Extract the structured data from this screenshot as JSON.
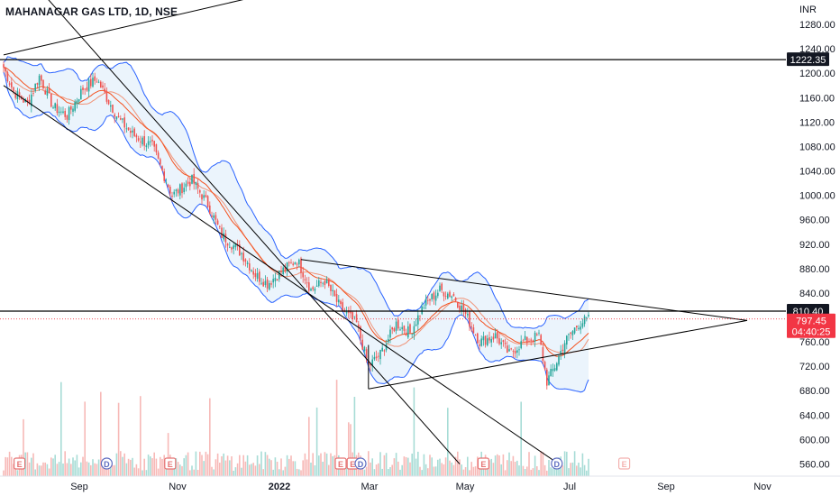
{
  "title": "MAHANAGAR GAS LTD, 1D, NSE",
  "currency": "INR",
  "colors": {
    "up": "#26a69a",
    "down": "#ef5350",
    "bb_line": "#2962ff",
    "bb_fill": "#e3f0fb",
    "ema": "#f4511e",
    "trend": "#000000",
    "vol_up": "#a7dcd6",
    "vol_down": "#f7b9b7",
    "last_price_bg": "#f23645"
  },
  "chart_data": {
    "type": "candlestick",
    "y_axis": {
      "min": 540,
      "max": 1320,
      "ticks": [
        560,
        600,
        640,
        680,
        720,
        760,
        800,
        840,
        880,
        920,
        960,
        1000,
        1040,
        1080,
        1120,
        1160,
        1200,
        1240,
        1280
      ]
    },
    "x_axis": {
      "ticks": [
        "Sep",
        "Nov",
        "2022",
        "Mar",
        "May",
        "Jul",
        "Sep",
        "Nov"
      ]
    },
    "price_lines": [
      {
        "label": "1222.35",
        "value": 1222.35
      },
      {
        "label": "810.40",
        "value": 810.4
      }
    ],
    "last_price": {
      "value": "797.45",
      "countdown": "04:40:25"
    },
    "markers": [
      {
        "type": "E",
        "x": "Aug 10"
      },
      {
        "type": "D",
        "x": "Sep 20"
      },
      {
        "type": "E",
        "x": "Oct 27"
      },
      {
        "type": "E",
        "x": "Feb 02"
      },
      {
        "type": "E",
        "x": "Feb 14"
      },
      {
        "type": "D",
        "x": "Feb 18"
      },
      {
        "type": "E",
        "x": "May 09"
      },
      {
        "type": "D",
        "x": "Jun 20"
      },
      {
        "type": "E",
        "x": "Aug 10"
      }
    ],
    "ohlc_anchors": [
      {
        "t": 0,
        "c": 1210
      },
      {
        "t": 5,
        "c": 1170
      },
      {
        "t": 12,
        "c": 1150
      },
      {
        "t": 18,
        "c": 1195
      },
      {
        "t": 25,
        "c": 1145
      },
      {
        "t": 32,
        "c": 1130
      },
      {
        "t": 40,
        "c": 1175
      },
      {
        "t": 47,
        "c": 1190
      },
      {
        "t": 52,
        "c": 1160
      },
      {
        "t": 58,
        "c": 1125
      },
      {
        "t": 65,
        "c": 1100
      },
      {
        "t": 75,
        "c": 1080
      },
      {
        "t": 85,
        "c": 1000
      },
      {
        "t": 95,
        "c": 1025
      },
      {
        "t": 103,
        "c": 985
      },
      {
        "t": 110,
        "c": 935
      },
      {
        "t": 120,
        "c": 905
      },
      {
        "t": 127,
        "c": 870
      },
      {
        "t": 133,
        "c": 855
      },
      {
        "t": 140,
        "c": 875
      },
      {
        "t": 148,
        "c": 895
      },
      {
        "t": 155,
        "c": 845
      },
      {
        "t": 162,
        "c": 860
      },
      {
        "t": 170,
        "c": 815
      },
      {
        "t": 178,
        "c": 790
      },
      {
        "t": 184,
        "c": 720
      },
      {
        "t": 190,
        "c": 740
      },
      {
        "t": 198,
        "c": 790
      },
      {
        "t": 205,
        "c": 775
      },
      {
        "t": 212,
        "c": 820
      },
      {
        "t": 220,
        "c": 845
      },
      {
        "t": 227,
        "c": 835
      },
      {
        "t": 233,
        "c": 805
      },
      {
        "t": 240,
        "c": 760
      },
      {
        "t": 248,
        "c": 770
      },
      {
        "t": 255,
        "c": 740
      },
      {
        "t": 262,
        "c": 760
      },
      {
        "t": 270,
        "c": 770
      },
      {
        "t": 274,
        "c": 695
      },
      {
        "t": 278,
        "c": 720
      },
      {
        "t": 283,
        "c": 760
      },
      {
        "t": 290,
        "c": 790
      },
      {
        "t": 295,
        "c": 797
      }
    ],
    "indicators": [
      "Bollinger Bands (20, 2)",
      "EMA"
    ]
  }
}
